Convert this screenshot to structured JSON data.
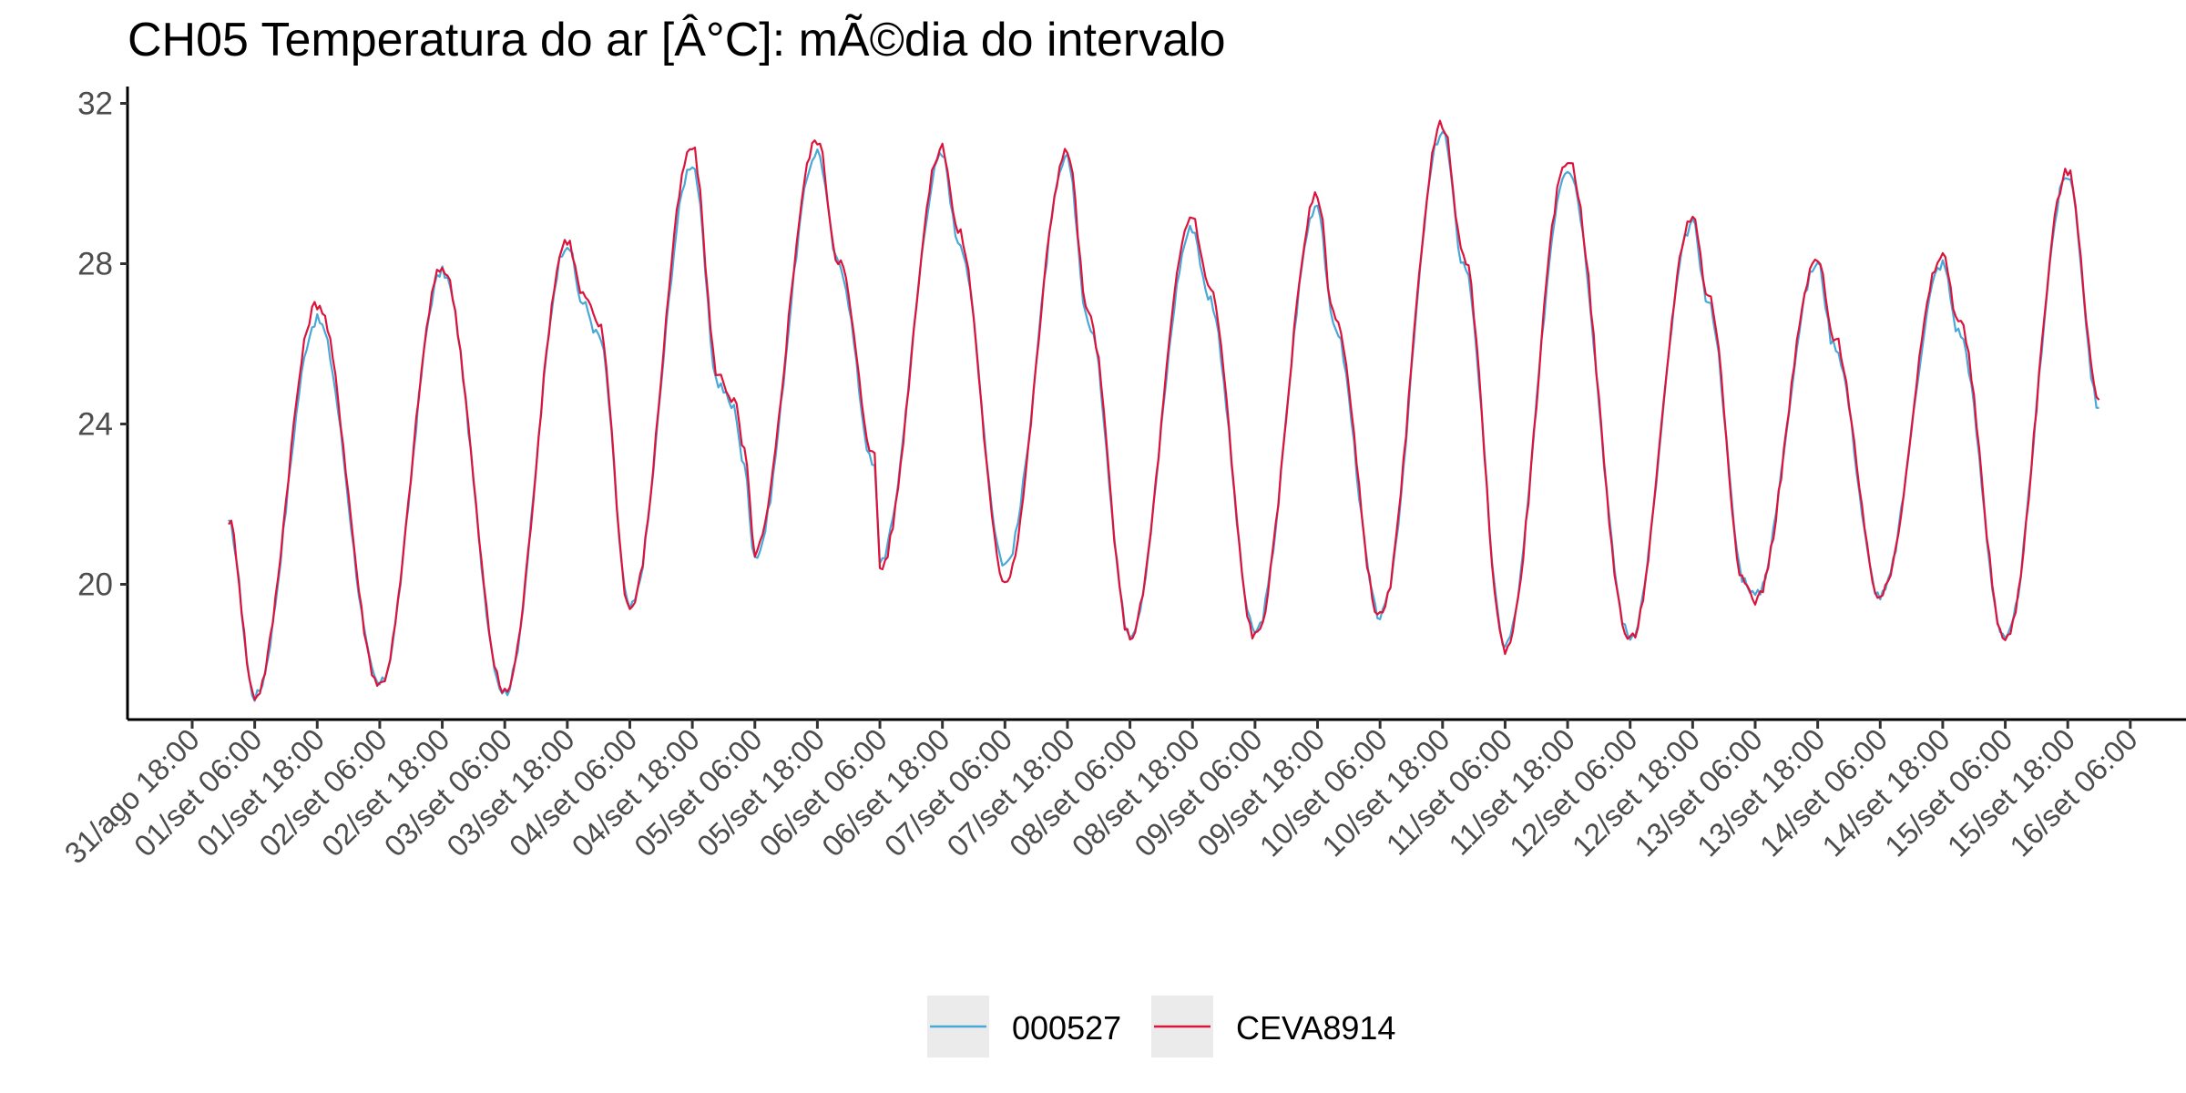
{
  "chart_data": {
    "type": "line",
    "title": "CH05 Temperatura do ar [Â°C]: mÃ©dia do intervalo",
    "xlabel": "",
    "ylabel": "",
    "x_unit": "hours from 31/ago 18:00",
    "ylim": [
      16.5,
      32.2
    ],
    "xlim": [
      -12,
      360
    ],
    "y_ticks": [
      20,
      24,
      28,
      32
    ],
    "x_ticks": [
      {
        "x": 0,
        "label": "31/ago 18:00"
      },
      {
        "x": 12,
        "label": "01/set 06:00"
      },
      {
        "x": 24,
        "label": "01/set 18:00"
      },
      {
        "x": 36,
        "label": "02/set 06:00"
      },
      {
        "x": 48,
        "label": "02/set 18:00"
      },
      {
        "x": 60,
        "label": "03/set 06:00"
      },
      {
        "x": 72,
        "label": "03/set 18:00"
      },
      {
        "x": 84,
        "label": "04/set 06:00"
      },
      {
        "x": 96,
        "label": "04/set 18:00"
      },
      {
        "x": 108,
        "label": "05/set 06:00"
      },
      {
        "x": 120,
        "label": "05/set 18:00"
      },
      {
        "x": 132,
        "label": "06/set 06:00"
      },
      {
        "x": 144,
        "label": "06/set 18:00"
      },
      {
        "x": 156,
        "label": "07/set 06:00"
      },
      {
        "x": 168,
        "label": "07/set 18:00"
      },
      {
        "x": 180,
        "label": "08/set 06:00"
      },
      {
        "x": 192,
        "label": "08/set 18:00"
      },
      {
        "x": 204,
        "label": "09/set 06:00"
      },
      {
        "x": 216,
        "label": "09/set 18:00"
      },
      {
        "x": 228,
        "label": "10/set 06:00"
      },
      {
        "x": 240,
        "label": "10/set 18:00"
      },
      {
        "x": 252,
        "label": "11/set 06:00"
      },
      {
        "x": 264,
        "label": "11/set 18:00"
      },
      {
        "x": 276,
        "label": "12/set 06:00"
      },
      {
        "x": 288,
        "label": "12/set 18:00"
      },
      {
        "x": 300,
        "label": "13/set 06:00"
      },
      {
        "x": 312,
        "label": "13/set 18:00"
      },
      {
        "x": 324,
        "label": "14/set 06:00"
      },
      {
        "x": 336,
        "label": "14/set 18:00"
      },
      {
        "x": 348,
        "label": "15/set 06:00"
      },
      {
        "x": 360,
        "label": "15/set 18:00"
      },
      {
        "x": 372,
        "label": "16/set 06:00"
      }
    ],
    "grid": false,
    "legend_position": "bottom",
    "series": [
      {
        "name": "000527",
        "color": "#4aa8d8",
        "points": [
          [
            7,
            21.5
          ],
          [
            12,
            17.2
          ],
          [
            24,
            26.6
          ],
          [
            36,
            17.5
          ],
          [
            48,
            27.8
          ],
          [
            60,
            17.3
          ],
          [
            72,
            28.5
          ],
          [
            75,
            27.0
          ],
          [
            78,
            26.2
          ],
          [
            84,
            19.4
          ],
          [
            96,
            30.5
          ],
          [
            101,
            25.0
          ],
          [
            104,
            24.4
          ],
          [
            106,
            22.9
          ],
          [
            108,
            20.7
          ],
          [
            120,
            30.8
          ],
          [
            124,
            28.0
          ],
          [
            131,
            22.9
          ],
          [
            132,
            20.6
          ],
          [
            144,
            30.7
          ],
          [
            147,
            28.6
          ],
          [
            156,
            20.5
          ],
          [
            168,
            30.6
          ],
          [
            172,
            26.5
          ],
          [
            180,
            18.8
          ],
          [
            192,
            28.9
          ],
          [
            195,
            27.2
          ],
          [
            204,
            18.8
          ],
          [
            216,
            29.5
          ],
          [
            219,
            26.5
          ],
          [
            228,
            19.2
          ],
          [
            240,
            31.3
          ],
          [
            244,
            28.0
          ],
          [
            252,
            18.5
          ],
          [
            264,
            30.4
          ],
          [
            276,
            18.7
          ],
          [
            288,
            29.0
          ],
          [
            291,
            27.0
          ],
          [
            298,
            20.1
          ],
          [
            300,
            19.7
          ],
          [
            312,
            28.0
          ],
          [
            315,
            26.0
          ],
          [
            324,
            19.7
          ],
          [
            336,
            28.0
          ],
          [
            339,
            26.3
          ],
          [
            348,
            18.6
          ],
          [
            360,
            30.2
          ],
          [
            366,
            24.4
          ]
        ]
      },
      {
        "name": "CEVA8914",
        "color": "#dc143c",
        "points": [
          [
            7,
            21.6
          ],
          [
            12,
            17.2
          ],
          [
            24,
            27.0
          ],
          [
            36,
            17.5
          ],
          [
            48,
            27.9
          ],
          [
            60,
            17.3
          ],
          [
            72,
            28.6
          ],
          [
            75,
            27.2
          ],
          [
            78,
            26.5
          ],
          [
            84,
            19.4
          ],
          [
            96,
            30.9
          ],
          [
            101,
            25.2
          ],
          [
            104,
            24.6
          ],
          [
            106,
            23.3
          ],
          [
            108,
            20.8
          ],
          [
            120,
            31.1
          ],
          [
            124,
            28.1
          ],
          [
            131,
            23.2
          ],
          [
            132,
            20.4
          ],
          [
            144,
            30.9
          ],
          [
            147,
            28.8
          ],
          [
            156,
            20.1
          ],
          [
            168,
            30.8
          ],
          [
            172,
            26.7
          ],
          [
            180,
            18.7
          ],
          [
            192,
            29.2
          ],
          [
            195,
            27.5
          ],
          [
            204,
            18.7
          ],
          [
            216,
            29.7
          ],
          [
            219,
            26.8
          ],
          [
            228,
            19.2
          ],
          [
            240,
            31.5
          ],
          [
            244,
            28.2
          ],
          [
            252,
            18.4
          ],
          [
            264,
            30.6
          ],
          [
            276,
            18.6
          ],
          [
            288,
            29.2
          ],
          [
            291,
            27.2
          ],
          [
            298,
            20.0
          ],
          [
            300,
            19.6
          ],
          [
            312,
            28.1
          ],
          [
            315,
            26.2
          ],
          [
            324,
            19.7
          ],
          [
            336,
            28.2
          ],
          [
            339,
            26.6
          ],
          [
            348,
            18.6
          ],
          [
            360,
            30.3
          ],
          [
            366,
            24.6
          ]
        ]
      }
    ]
  },
  "legend": {
    "items": [
      {
        "label": "000527",
        "color": "#4aa8d8"
      },
      {
        "label": "CEVA8914",
        "color": "#dc143c"
      }
    ]
  }
}
